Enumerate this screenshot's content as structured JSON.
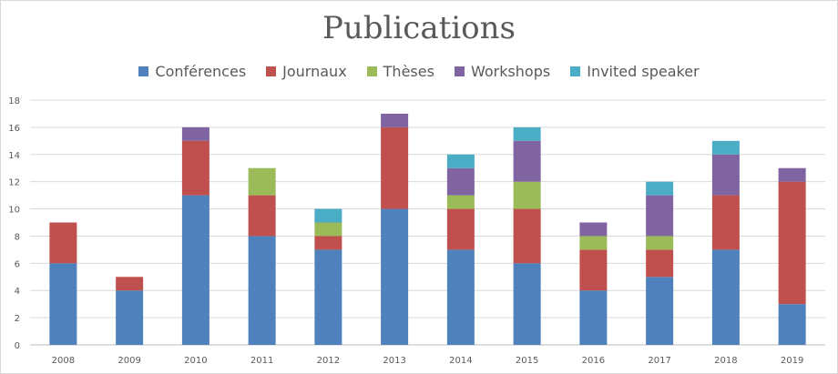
{
  "chart_data": {
    "type": "bar",
    "stacked": true,
    "title": "Publications",
    "xlabel": "",
    "ylabel": "",
    "ylim": [
      0,
      18
    ],
    "yticks": [
      0,
      2,
      4,
      6,
      8,
      10,
      12,
      14,
      16,
      18
    ],
    "grid": true,
    "legend_position": "top",
    "categories": [
      "2008",
      "2009",
      "2010",
      "2011",
      "2012",
      "2013",
      "2014",
      "2015",
      "2016",
      "2017",
      "2018",
      "2019"
    ],
    "series": [
      {
        "name": "Conférences",
        "color": "#4f81bd",
        "values": [
          6,
          4,
          11,
          8,
          7,
          10,
          7,
          6,
          4,
          5,
          7,
          3
        ]
      },
      {
        "name": "Journaux",
        "color": "#c0504d",
        "values": [
          3,
          1,
          4,
          3,
          1,
          6,
          3,
          4,
          3,
          2,
          4,
          9
        ]
      },
      {
        "name": "Thèses",
        "color": "#9bbb59",
        "values": [
          0,
          0,
          0,
          2,
          1,
          0,
          1,
          2,
          1,
          1,
          0,
          0
        ]
      },
      {
        "name": "Workshops",
        "color": "#8064a2",
        "values": [
          0,
          0,
          1,
          0,
          0,
          1,
          2,
          3,
          1,
          3,
          3,
          1
        ]
      },
      {
        "name": "Invited speaker",
        "color": "#4bacc6",
        "values": [
          0,
          0,
          0,
          0,
          1,
          0,
          1,
          1,
          0,
          1,
          1,
          0
        ]
      }
    ]
  }
}
